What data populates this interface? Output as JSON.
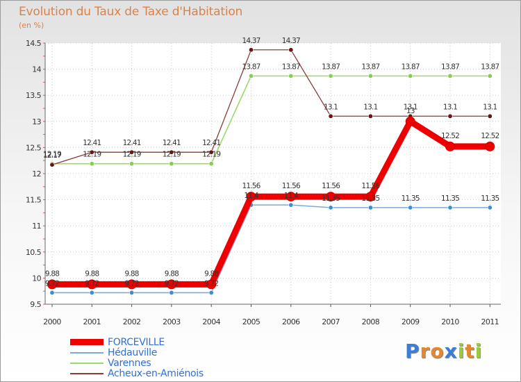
{
  "chart_data": {
    "type": "line",
    "title": "Evolution du Taux de Taxe d'Habitation",
    "ylabel": "(en %)",
    "xlabel": "",
    "categories": [
      "2000",
      "2001",
      "2002",
      "2003",
      "2004",
      "2005",
      "2006",
      "2007",
      "2008",
      "2009",
      "2010",
      "2011"
    ],
    "ylim": [
      9.5,
      14.5
    ],
    "yticks": [
      "9.5",
      "10",
      "10.5",
      "11",
      "11.5",
      "12",
      "12.5",
      "13",
      "13.5",
      "14",
      "14.5"
    ],
    "series": [
      {
        "name": "FORCEVILLE",
        "color": "#ee0000",
        "labels": [
          "9.88",
          "9.88",
          "9.88",
          "9.88",
          "9.88",
          "11.56",
          "11.56",
          "11.56",
          "11.56",
          "13",
          "12.52",
          "12.52"
        ],
        "values": [
          9.88,
          9.88,
          9.88,
          9.88,
          9.88,
          11.56,
          11.56,
          11.56,
          11.56,
          13,
          12.52,
          12.52
        ]
      },
      {
        "name": "Hédauville",
        "color": "#6fa3d6",
        "labels": [
          "9.72",
          "9.72",
          "9.72",
          "9.72",
          "9.72",
          "11.4",
          "11.4",
          "11.35",
          "11.35",
          "11.35",
          "11.35",
          "11.35"
        ],
        "values": [
          9.72,
          9.72,
          9.72,
          9.72,
          9.72,
          11.4,
          11.4,
          11.35,
          11.35,
          11.35,
          11.35,
          11.35
        ]
      },
      {
        "name": "Varennes",
        "color": "#9ad86b",
        "labels": [
          "12.19",
          "12.19",
          "12.19",
          "12.19",
          "12.19",
          "13.87",
          "13.87",
          "13.87",
          "13.87",
          "13.87",
          "13.87",
          "13.87"
        ],
        "values": [
          12.19,
          12.19,
          12.19,
          12.19,
          12.19,
          13.87,
          13.87,
          13.87,
          13.87,
          13.87,
          13.87,
          13.87
        ]
      },
      {
        "name": "Acheux-en-Amiénois",
        "color": "#8b2c2c",
        "labels": [
          "12.17",
          "12.41",
          "12.41",
          "12.41",
          "12.41",
          "14.37",
          "14.37",
          "13.1",
          "13.1",
          "13.1",
          "13.1",
          "13.1"
        ],
        "values": [
          12.17,
          12.41,
          12.41,
          12.41,
          12.41,
          14.37,
          14.37,
          13.1,
          13.1,
          13.1,
          13.1,
          13.1
        ]
      }
    ]
  },
  "logo": {
    "text": "Proxiti",
    "letters": [
      "P",
      "r",
      "o",
      "x",
      "i",
      "t",
      "i"
    ],
    "colors": [
      "#3b7ed6",
      "#e0892e",
      "#e0892e",
      "#3b7ed6",
      "#9acb3b",
      "#e0892e",
      "#9acb3b"
    ]
  }
}
